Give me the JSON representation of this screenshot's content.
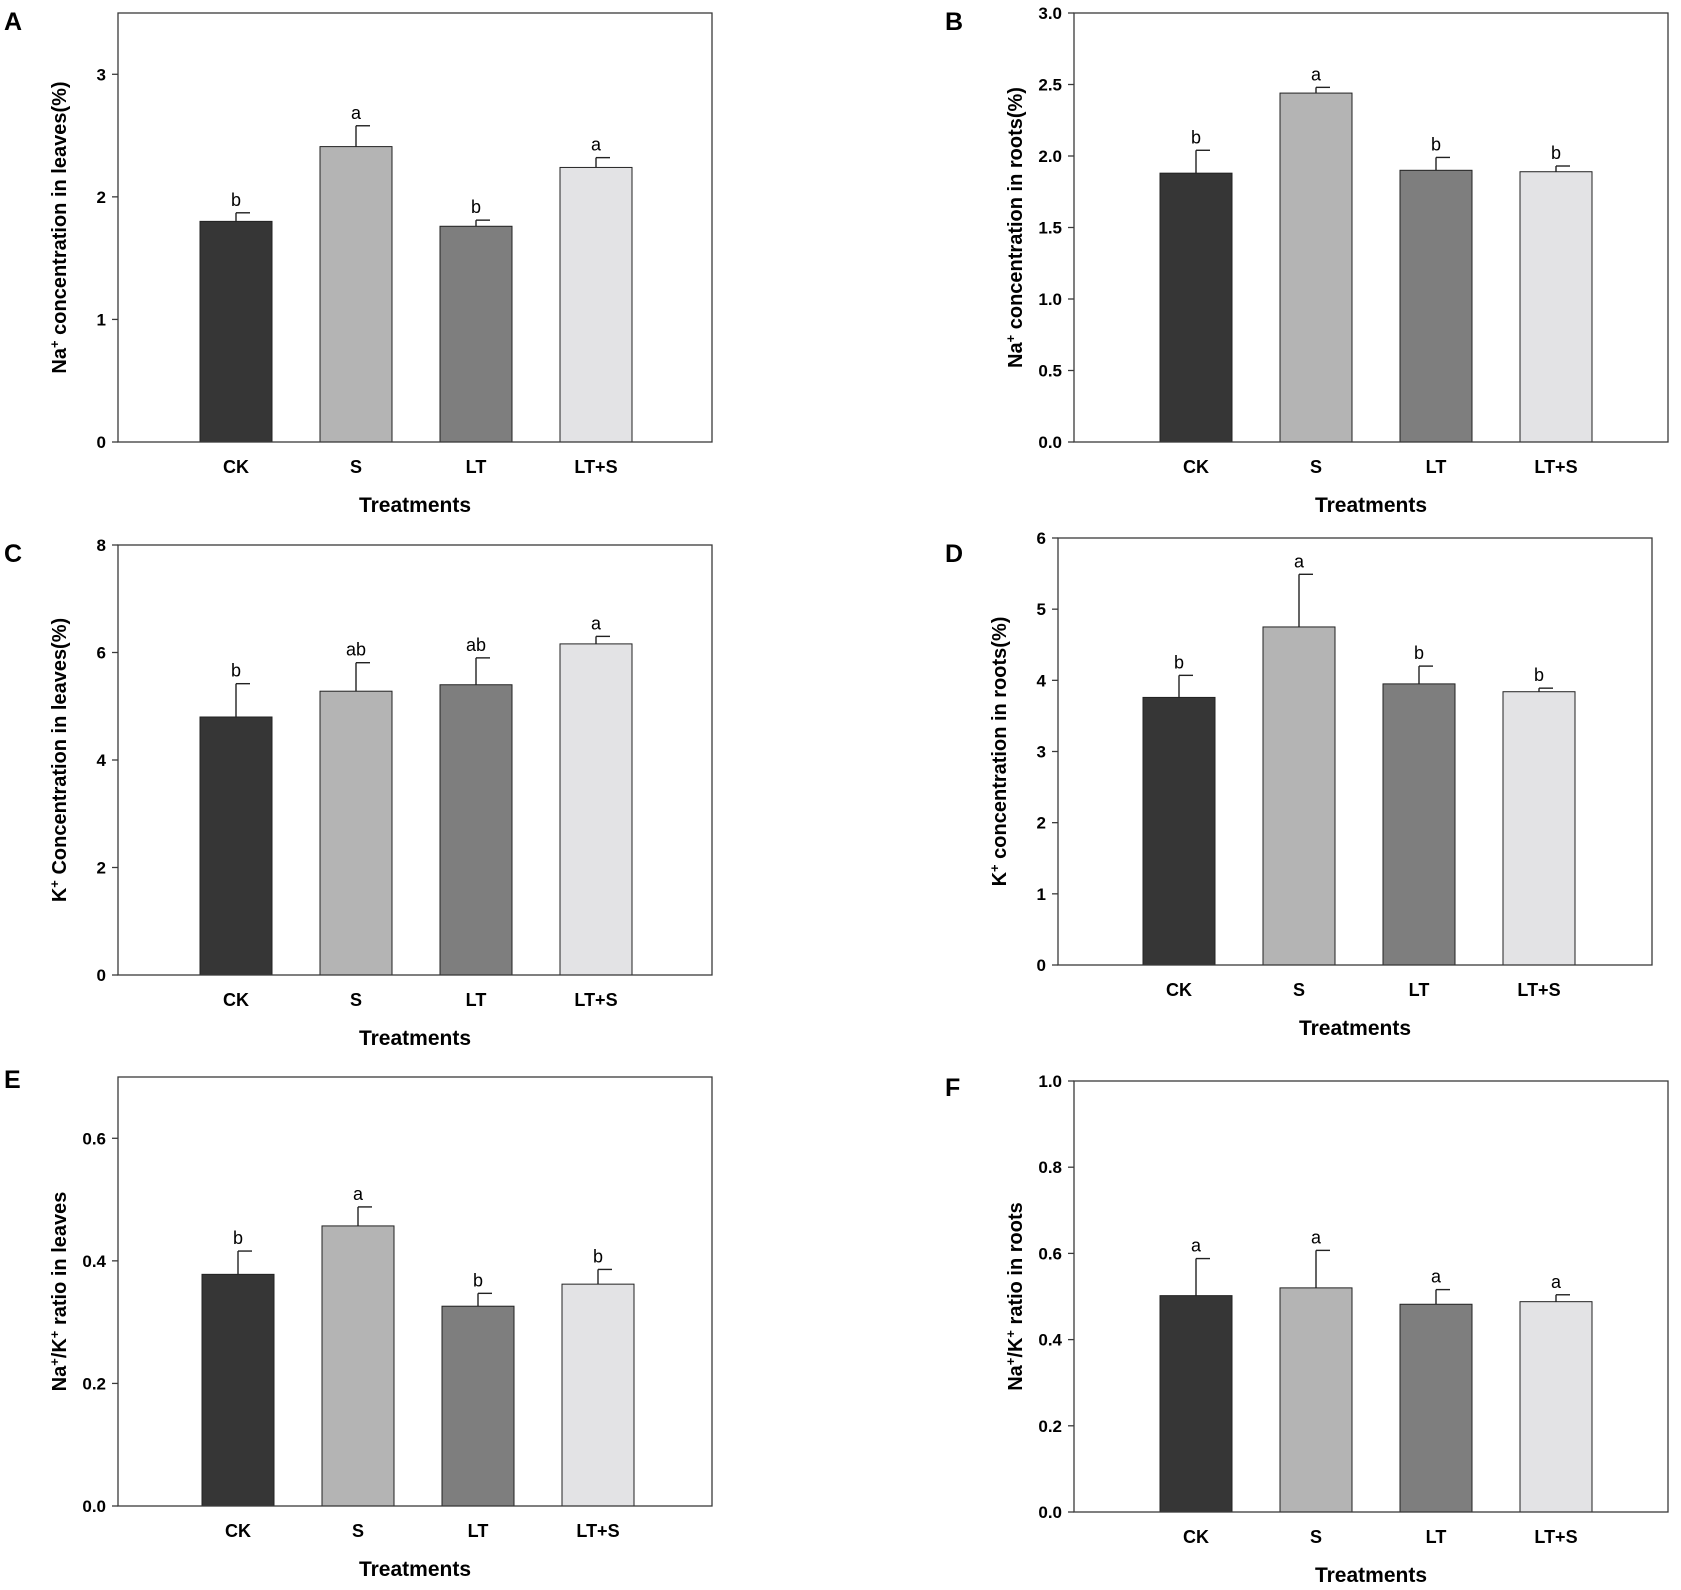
{
  "chart_data": [
    {
      "type": "bar",
      "panel": "A",
      "categories": [
        "CK",
        "S",
        "LT",
        "LT+S"
      ],
      "values": [
        1.8,
        2.41,
        1.76,
        2.24
      ],
      "errors": [
        0.07,
        0.17,
        0.05,
        0.08
      ],
      "significance": [
        "b",
        "a",
        "b",
        "a"
      ],
      "ylabel": {
        "pre": "Na",
        "sup": "+",
        "post": " concentration in leaves(%)"
      },
      "xlabel": "Treatments",
      "ylim": [
        0,
        3.5
      ],
      "yticks": [
        "0",
        "1",
        "2",
        "3"
      ],
      "ytick_values": [
        0,
        1,
        2,
        3
      ]
    },
    {
      "type": "bar",
      "panel": "B",
      "categories": [
        "CK",
        "S",
        "LT",
        "LT+S"
      ],
      "values": [
        1.88,
        2.44,
        1.9,
        1.89
      ],
      "errors": [
        0.16,
        0.04,
        0.09,
        0.04
      ],
      "significance": [
        "b",
        "a",
        "b",
        "b"
      ],
      "ylabel": {
        "pre": "Na",
        "sup": "+",
        "post": " concentration in roots(%)"
      },
      "xlabel": "Treatments",
      "ylim": [
        0,
        3.0
      ],
      "yticks": [
        "0.0",
        "0.5",
        "1.0",
        "1.5",
        "2.0",
        "2.5",
        "3.0"
      ],
      "ytick_values": [
        0,
        0.5,
        1.0,
        1.5,
        2.0,
        2.5,
        3.0
      ]
    },
    {
      "type": "bar",
      "panel": "C",
      "categories": [
        "CK",
        "S",
        "LT",
        "LT+S"
      ],
      "values": [
        4.8,
        5.28,
        5.4,
        6.16
      ],
      "errors": [
        0.62,
        0.53,
        0.5,
        0.14
      ],
      "significance": [
        "b",
        "ab",
        "ab",
        "a"
      ],
      "ylabel": {
        "pre": "K",
        "sup": "+",
        "post": " Concentration in leaves(%)"
      },
      "xlabel": "Treatments",
      "ylim": [
        0,
        8
      ],
      "yticks": [
        "0",
        "2",
        "4",
        "6",
        "8"
      ],
      "ytick_values": [
        0,
        2,
        4,
        6,
        8
      ]
    },
    {
      "type": "bar",
      "panel": "D",
      "categories": [
        "CK",
        "S",
        "LT",
        "LT+S"
      ],
      "values": [
        3.76,
        4.75,
        3.95,
        3.84
      ],
      "errors": [
        0.31,
        0.74,
        0.25,
        0.05
      ],
      "significance": [
        "b",
        "a",
        "b",
        "b"
      ],
      "ylabel": {
        "pre": "K",
        "sup": "+",
        "post": " concentration in roots(%)"
      },
      "xlabel": "Treatments",
      "ylim": [
        0,
        6
      ],
      "yticks": [
        "0",
        "1",
        "2",
        "3",
        "4",
        "5",
        "6"
      ],
      "ytick_values": [
        0,
        1,
        2,
        3,
        4,
        5,
        6
      ]
    },
    {
      "type": "bar",
      "panel": "E",
      "categories": [
        "CK",
        "S",
        "LT",
        "LT+S"
      ],
      "values": [
        0.378,
        0.457,
        0.326,
        0.362
      ],
      "errors": [
        0.038,
        0.031,
        0.021,
        0.024
      ],
      "significance": [
        "b",
        "a",
        "b",
        "b"
      ],
      "ylabel": {
        "pre": "Na",
        "sup": "+",
        "mid": "/K",
        "sup2": "+",
        "post": " ratio in leaves"
      },
      "xlabel": "Treatments",
      "ylim": [
        0,
        0.7
      ],
      "yticks": [
        "0.0",
        "0.2",
        "0.4",
        "0.6"
      ],
      "ytick_values": [
        0,
        0.2,
        0.4,
        0.6
      ]
    },
    {
      "type": "bar",
      "panel": "F",
      "categories": [
        "CK",
        "S",
        "LT",
        "LT+S"
      ],
      "values": [
        0.502,
        0.52,
        0.482,
        0.488
      ],
      "errors": [
        0.086,
        0.087,
        0.034,
        0.016
      ],
      "significance": [
        "a",
        "a",
        "a",
        "a"
      ],
      "ylabel": {
        "pre": "Na",
        "sup": "+",
        "mid": "/K",
        "sup2": "+",
        "post": " ratio in roots"
      },
      "xlabel": "Treatments",
      "ylim": [
        0,
        1.0
      ],
      "yticks": [
        "0.0",
        "0.2",
        "0.4",
        "0.6",
        "0.8",
        "1.0"
      ],
      "ytick_values": [
        0,
        0.2,
        0.4,
        0.6,
        0.8,
        1.0
      ]
    }
  ],
  "bar_colors": [
    "#363636",
    "#b4b4b4",
    "#7e7e7e",
    "#e3e3e5"
  ],
  "frame_color": "#3a3a3a"
}
